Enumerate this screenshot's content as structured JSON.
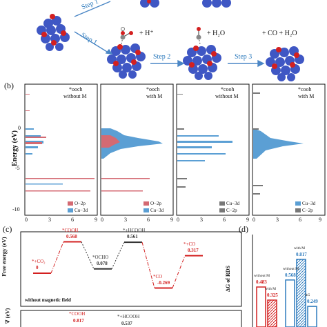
{
  "colors": {
    "cu_atom": "#3f57c4",
    "o_atom": "#d32020",
    "step_text": "#2e7bbd",
    "o2p": "#d46a73",
    "cu3d": "#5b9fd4",
    "c2p": "#777777",
    "pathway_red": "#d32020",
    "pathway_dark": "#333333",
    "bar_blue": "#2e7bbd",
    "bar_red": "#d32020"
  },
  "panel_a": {
    "top_formula": "",
    "steps": [
      "Step 1",
      "Step 1",
      "Step 2",
      "Step 3"
    ],
    "species": {
      "hcooh_label": "+ H⁺",
      "co2_label": "+ H₂O",
      "final_label": "+ CO + H₂O"
    }
  },
  "panel_b": {
    "label": "(b)",
    "ylabel": "Energy (eV)",
    "yticks": [
      "0",
      "-5",
      "-10"
    ],
    "xticks": [
      "0",
      "3",
      "6",
      "9"
    ],
    "plots": [
      {
        "title_line1": "*ooch",
        "title_line2": "without M",
        "legend": [
          "O−2p",
          "Cu−3d"
        ]
      },
      {
        "title_line1": "*ooch",
        "title_line2": "with M",
        "legend": [
          "O−2p",
          "Cu−3d"
        ]
      },
      {
        "title_line1": "*cooh",
        "title_line2": "without M",
        "legend": [
          "Cu−3d",
          "C−2p"
        ]
      },
      {
        "title_line1": "*cooh",
        "title_line2": "with M",
        "legend": [
          "Cu−3d",
          "C−2p"
        ]
      }
    ]
  },
  "panel_c": {
    "label": "(c)",
    "ylabel": "Free energy (eV)",
    "ylabel2": "∇ (eV)",
    "note": "without magnetic field",
    "states": [
      {
        "name": "*+CO₂",
        "value": "0"
      },
      {
        "name": "*COOH",
        "value": "0.568"
      },
      {
        "name": "*OCHO",
        "value": "0.078"
      },
      {
        "name": "*+HCOOH",
        "value": "0.561"
      },
      {
        "name": "*CO",
        "value": "-0.269"
      },
      {
        "name": "*+CO",
        "value": "0.317"
      }
    ],
    "lower_states": [
      {
        "name": "*COOH",
        "value": "0.817"
      },
      {
        "name": "*+HCOOH",
        "value": "0.537"
      }
    ]
  },
  "panel_d": {
    "label": "(d)",
    "ylabel": "ΔG of RDS",
    "bars": [
      {
        "top": "without M",
        "value": "0.483"
      },
      {
        "top": "with M",
        "value": "0.325"
      },
      {
        "top": "without M",
        "value": "0.568"
      },
      {
        "top": "with M",
        "value": "0.817"
      },
      {
        "top": "ΔG",
        "value": "0.249"
      }
    ]
  },
  "chart_data": [
    {
      "type": "line",
      "title": "",
      "xlabel": "",
      "ylabel": "Free energy (eV)",
      "series": [
        {
          "name": "without magnetic field",
          "points": [
            {
              "x": "*+CO₂",
              "y": 0
            },
            {
              "x": "*COOH",
              "y": 0.568
            },
            {
              "x": "*OCHO",
              "y": 0.078
            },
            {
              "x": "*+HCOOH",
              "y": 0.561
            },
            {
              "x": "*CO",
              "y": -0.269
            },
            {
              "x": "*+CO",
              "y": 0.317
            }
          ]
        }
      ]
    },
    {
      "type": "bar",
      "title": "",
      "ylabel": "ΔG of RDS",
      "categories": [
        "without M",
        "with M",
        "without M",
        "with M",
        "ΔG"
      ],
      "values": [
        0.483,
        0.325,
        0.568,
        0.817,
        0.249
      ]
    }
  ]
}
